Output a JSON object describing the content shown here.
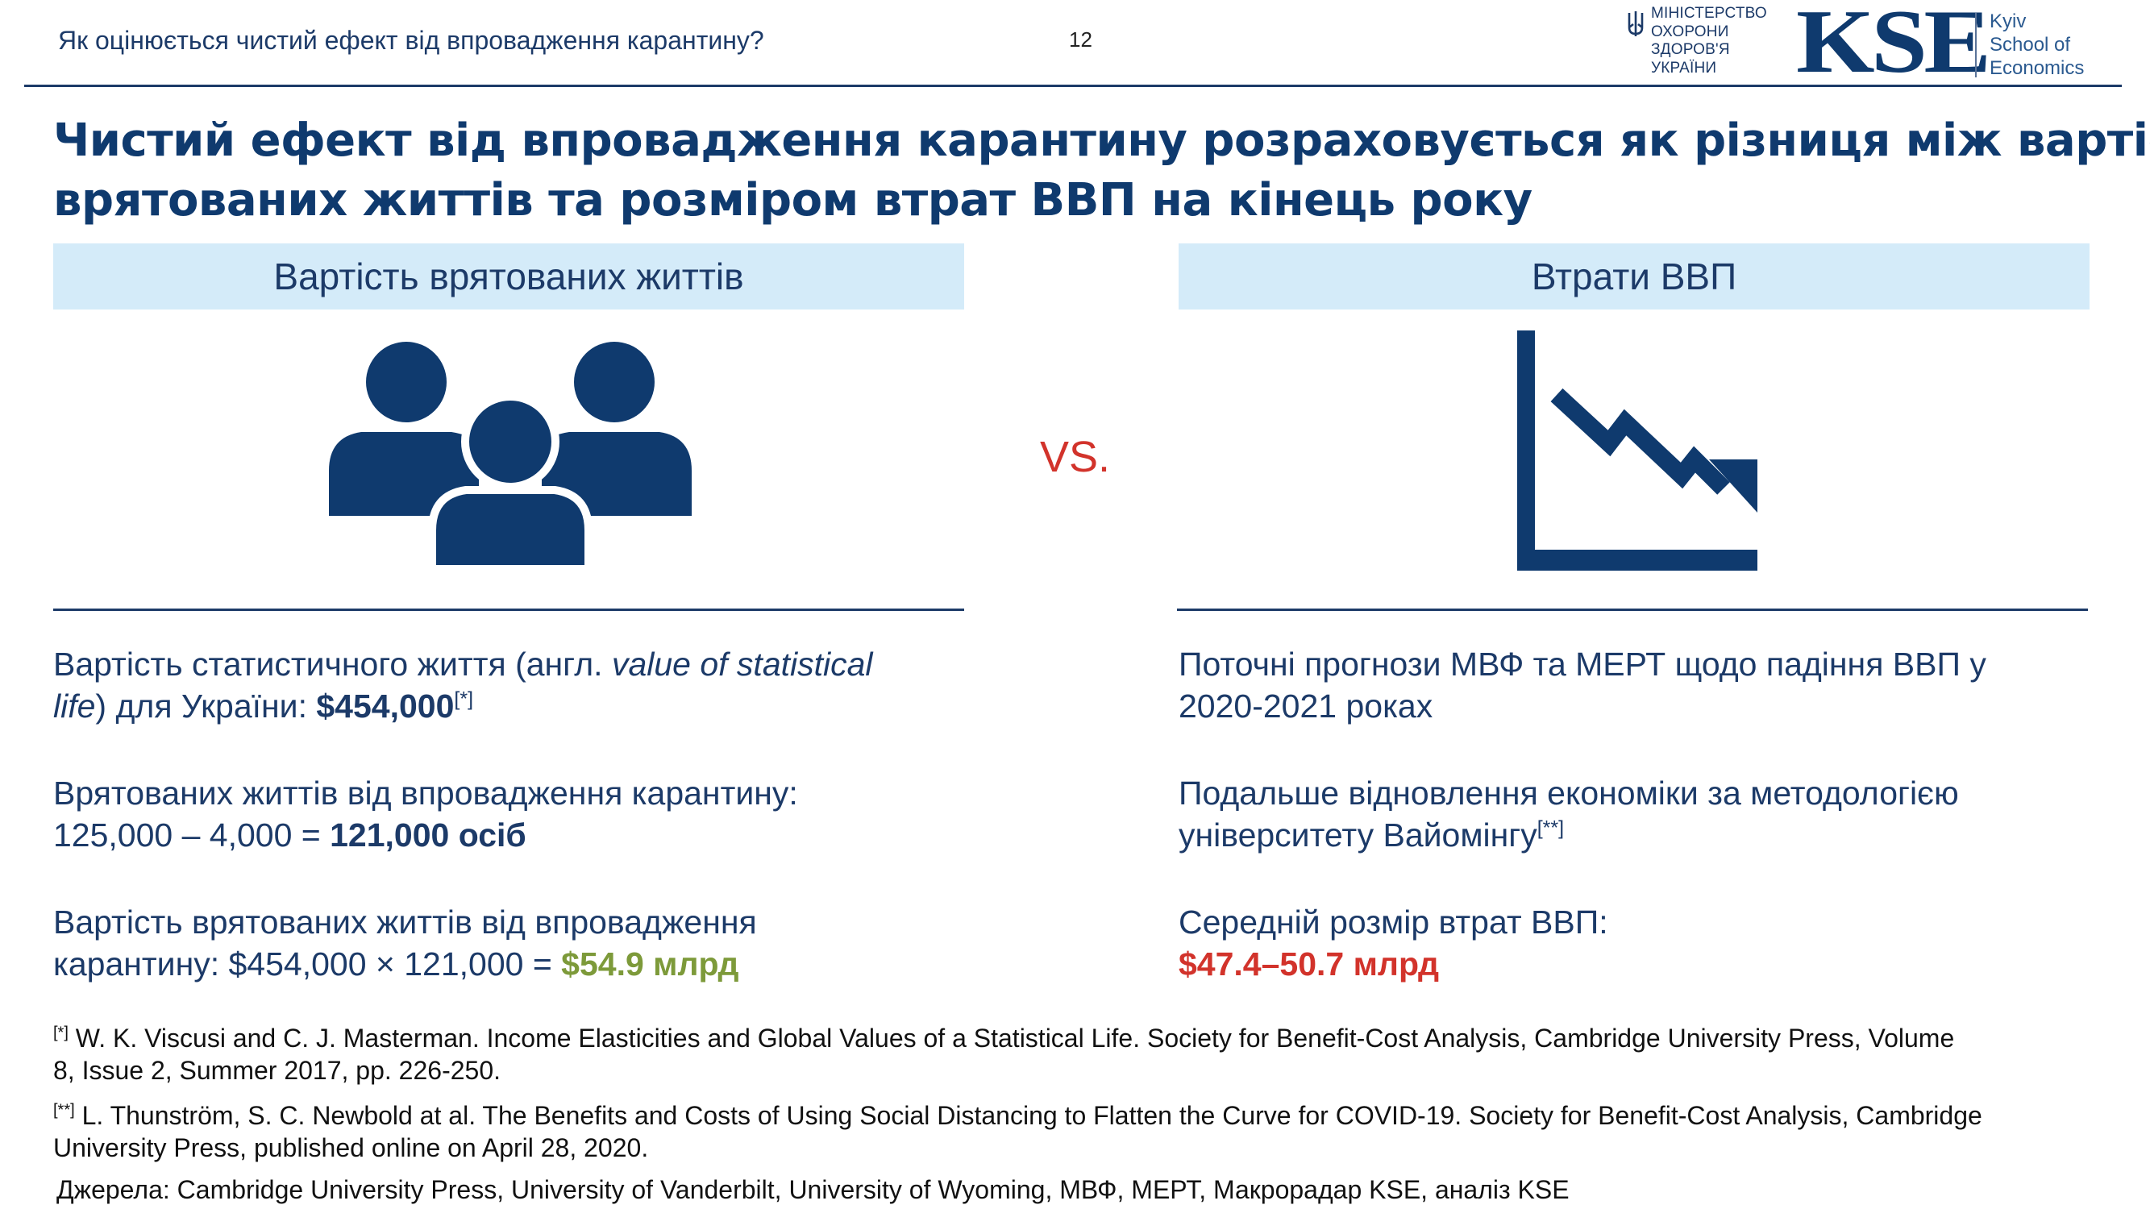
{
  "header": {
    "title": "Як оцінюється чистий ефект від впровадження карантину?",
    "page_number": "12",
    "ministry_lines": [
      "МІНІСТЕРСТВО",
      "ОХОРОНИ",
      "ЗДОРОВ'Я",
      "УКРАЇНИ"
    ],
    "kse_mark": "KSE",
    "kse_lines": [
      "Kyiv",
      "School of",
      "Economics"
    ]
  },
  "heading": {
    "line1": "Чистий ефект від впровадження карантину розраховується як різниця між вартістю",
    "line2": "врятованих життів та розміром втрат ВВП на кінець року"
  },
  "left": {
    "band": "Вартість врятованих життів",
    "p1": {
      "a": "Вартість статистичного життя (англ. ",
      "italic1": "value of statistical",
      "italic2": "life",
      "b": ") для України: ",
      "value": "$454,000",
      "sup": "[*]"
    },
    "p2": {
      "line1": "Врятованих життів від впровадження карантину:",
      "calc": "125,000 – 4,000 = ",
      "value": "121,000 осіб"
    },
    "p3": {
      "line1": "Вартість врятованих життів від впровадження",
      "calc": "карантину: $454,000 × 121,000 = ",
      "value": "$54.9 млрд"
    }
  },
  "vs": "VS.",
  "right": {
    "band": "Втрати ВВП",
    "p1": {
      "line1": "Поточні прогнози МВФ та МЕРТ щодо падіння ВВП у",
      "line2": "2020-2021 роках"
    },
    "p2": {
      "line1": "Подальше відновлення економіки за методологією",
      "line2": "університету Вайомінгу",
      "sup": "[**]"
    },
    "p3": {
      "line1": "Середній розмір втрат ВВП:",
      "value": "$47.4–50.7 млрд"
    }
  },
  "footnotes": {
    "f1_mark": "[*]",
    "f1_line1": " W. K. Viscusi and C. J. Masterman. Income Elasticities and Global Values of a Statistical Life. Society for Benefit-Cost Analysis, Cambridge University Press, Volume",
    "f1_line2": "8, Issue 2, Summer 2017, pp. 226-250.",
    "f2_mark": "[**]",
    "f2_line1": " L. Thunström, S. C. Newbold at al. The Benefits and Costs of Using Social Distancing to Flatten the Curve for COVID-19. Society for Benefit-Cost Analysis, Cambridge",
    "f2_line2": "University Press, published online on April 28, 2020."
  },
  "sources": "Джерела: Cambridge University Press, University of Vanderbilt, University of Wyoming, МВФ, МЕРТ, Макрорадар KSE, аналіз KSE",
  "icons": {
    "people": "people-group-icon",
    "chart": "declining-chart-icon",
    "emblem": "trident-emblem-icon"
  },
  "colors": {
    "navy": "#0f3a6e",
    "text": "#1c3a68",
    "band": "#d4ebf9",
    "green": "#7d9a3a",
    "red": "#d2332b"
  }
}
